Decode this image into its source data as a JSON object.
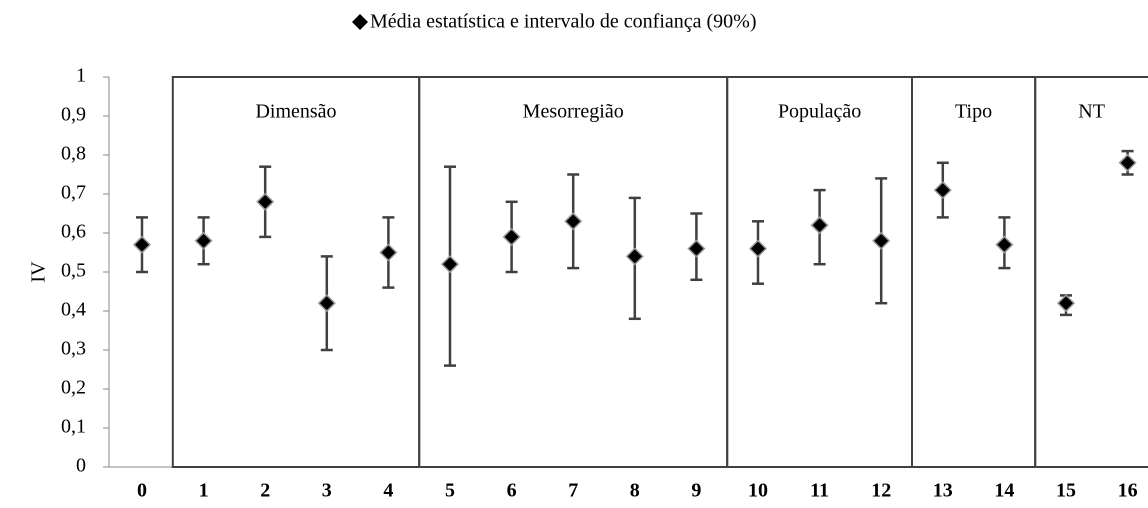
{
  "chart_data": {
    "type": "errorbar",
    "legend": "Média estatística e intervalo de confiança (90%)",
    "ylabel": "IV",
    "categories": [
      "0",
      "1",
      "2",
      "3",
      "4",
      "5",
      "6",
      "7",
      "8",
      "9",
      "10",
      "11",
      "12",
      "13",
      "14",
      "15",
      "16"
    ],
    "series": [
      {
        "name": "Média estatística e intervalo de confiança (90%)",
        "color": "#000000",
        "values": [
          0.57,
          0.58,
          0.68,
          0.42,
          0.55,
          0.52,
          0.59,
          0.63,
          0.54,
          0.56,
          0.56,
          0.62,
          0.58,
          0.71,
          0.57,
          0.42,
          0.78
        ],
        "low": [
          0.5,
          0.52,
          0.59,
          0.3,
          0.46,
          0.26,
          0.5,
          0.51,
          0.38,
          0.48,
          0.47,
          0.52,
          0.42,
          0.64,
          0.51,
          0.39,
          0.75
        ],
        "high": [
          0.64,
          0.64,
          0.77,
          0.54,
          0.64,
          0.77,
          0.68,
          0.75,
          0.69,
          0.65,
          0.63,
          0.71,
          0.74,
          0.78,
          0.64,
          0.44,
          0.81
        ]
      }
    ],
    "groups": [
      {
        "label": "Dimensão",
        "members": [
          "1",
          "2",
          "3",
          "4"
        ]
      },
      {
        "label": "Mesorregião",
        "members": [
          "5",
          "6",
          "7",
          "8",
          "9"
        ]
      },
      {
        "label": "População",
        "members": [
          "10",
          "11",
          "12"
        ]
      },
      {
        "label": "Tipo",
        "members": [
          "13",
          "14"
        ]
      },
      {
        "label": "NT",
        "members": [
          "15",
          "16"
        ]
      }
    ],
    "ylim": [
      0,
      1
    ],
    "yticks": [
      0,
      {
        "value": 0.1,
        "label": "0,1"
      },
      {
        "value": 0.2,
        "label": "0,2"
      },
      {
        "value": 0.3,
        "label": "0,3"
      },
      {
        "value": 0.4,
        "label": "0,4"
      },
      {
        "value": 0.5,
        "label": "0,5"
      },
      {
        "value": 0.6,
        "label": "0,6"
      },
      {
        "value": 0.7,
        "label": "0,7"
      },
      {
        "value": 0.8,
        "label": "0,8"
      },
      {
        "value": 0.9,
        "label": "0,9"
      },
      1
    ]
  }
}
